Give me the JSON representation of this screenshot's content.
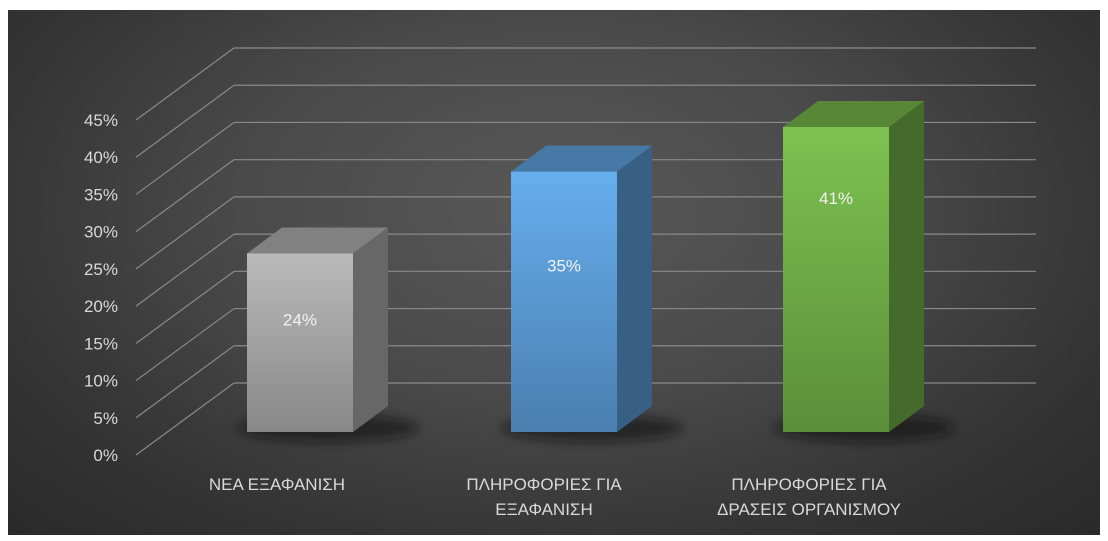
{
  "chart_data": {
    "type": "bar",
    "title": "",
    "xlabel": "",
    "ylabel": "",
    "categories": [
      [
        "ΝΕΑ ΕΞΑΦΑΝΙΣΗ"
      ],
      [
        "ΠΛΗΡΟΦΟΡΙΕΣ ΓΙΑ",
        "ΕΞΑΦΑΝΙΣΗ"
      ],
      [
        "ΠΛΗΡΟΦΟΡΙΕΣ ΓΙΑ",
        "ΔΡΑΣΕΙΣ ΟΡΓΑΝΙΣΜΟΥ"
      ]
    ],
    "values": [
      24,
      35,
      41
    ],
    "data_labels": [
      "24%",
      "35%",
      "41%"
    ],
    "ylim": [
      0,
      45
    ],
    "yticks": [
      "0%",
      "5%",
      "10%",
      "15%",
      "20%",
      "25%",
      "30%",
      "35%",
      "40%",
      "45%"
    ],
    "grid": true,
    "legend": "none",
    "style": "3d-column",
    "colors": [
      "#a6a6a6",
      "#5b9bd5",
      "#70ad47"
    ],
    "background": "#4a4a4a"
  }
}
